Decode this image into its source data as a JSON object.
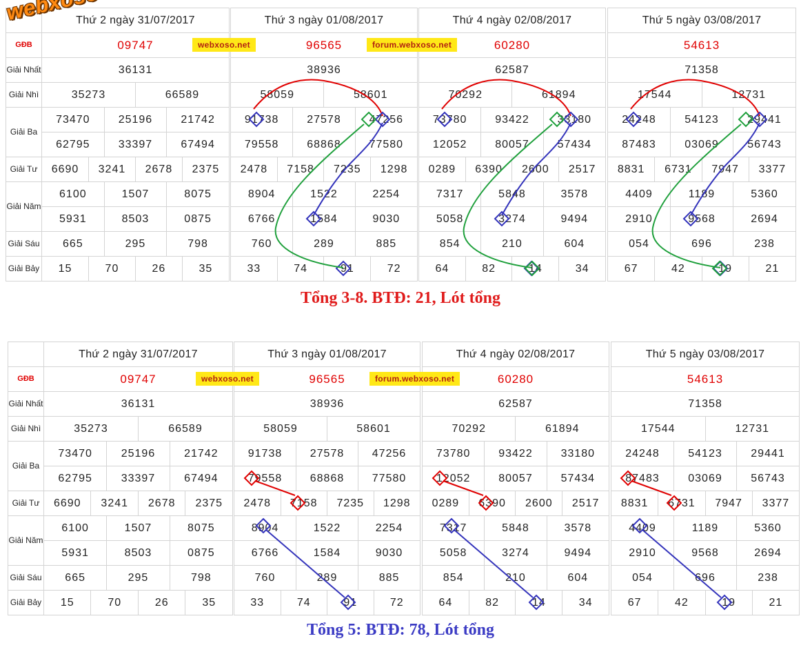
{
  "logo": "webxoso.net",
  "badges": {
    "site": "webxoso.net",
    "forum": "forum.webxoso.net"
  },
  "labels": {
    "gdb": "GĐB",
    "nhat": "Giải Nhất",
    "nhi": "Giải Nhì",
    "ba": "Giải Ba",
    "tu": "Giải Tư",
    "nam": "Giải Năm",
    "sau": "Giải Sáu",
    "bay": "Giải Bảy"
  },
  "days": [
    {
      "header": "Thứ 2 ngày 31/07/2017",
      "gdb": "09747",
      "nhat": "36131",
      "nhi": [
        "35273",
        "66589"
      ],
      "ba1": [
        "73470",
        "25196",
        "21742"
      ],
      "ba2": [
        "62795",
        "33397",
        "67494"
      ],
      "tu": [
        "6690",
        "3241",
        "2678",
        "2375"
      ],
      "nam1": [
        "6100",
        "1507",
        "8075"
      ],
      "nam2": [
        "5931",
        "8503",
        "0875"
      ],
      "sau": [
        "665",
        "295",
        "798"
      ],
      "bay": [
        "15",
        "70",
        "26",
        "35"
      ]
    },
    {
      "header": "Thứ 3 ngày 01/08/2017",
      "gdb": "96565",
      "nhat": "38936",
      "nhi": [
        "58059",
        "58601"
      ],
      "ba1": [
        "91738",
        "27578",
        "47256"
      ],
      "ba2": [
        "79558",
        "68868",
        "77580"
      ],
      "tu": [
        "2478",
        "7158",
        "7235",
        "1298"
      ],
      "nam1": [
        "8904",
        "1522",
        "2254"
      ],
      "nam2": [
        "6766",
        "1584",
        "9030"
      ],
      "sau": [
        "760",
        "289",
        "885"
      ],
      "bay": [
        "33",
        "74",
        "91",
        "72"
      ]
    },
    {
      "header": "Thứ 4 ngày 02/08/2017",
      "gdb": "60280",
      "nhat": "62587",
      "nhi": [
        "70292",
        "61894"
      ],
      "ba1": [
        "73780",
        "93422",
        "33180"
      ],
      "ba2": [
        "12052",
        "80057",
        "57434"
      ],
      "tu": [
        "0289",
        "6390",
        "2600",
        "2517"
      ],
      "nam1": [
        "7317",
        "5848",
        "3578"
      ],
      "nam2": [
        "5058",
        "3274",
        "9494"
      ],
      "sau": [
        "854",
        "210",
        "604"
      ],
      "bay": [
        "64",
        "82",
        "14",
        "34"
      ]
    },
    {
      "header": "Thứ 5 ngày 03/08/2017",
      "gdb": "54613",
      "nhat": "71358",
      "nhi": [
        "17544",
        "12731"
      ],
      "ba1": [
        "24248",
        "54123",
        "29441"
      ],
      "ba2": [
        "87483",
        "03069",
        "56743"
      ],
      "tu": [
        "8831",
        "6731",
        "7947",
        "3377"
      ],
      "nam1": [
        "4409",
        "1189",
        "5360"
      ],
      "nam2": [
        "2910",
        "9568",
        "2694"
      ],
      "sau": [
        "054",
        "696",
        "238"
      ],
      "bay": [
        "67",
        "42",
        "19",
        "21"
      ]
    }
  ],
  "captions": {
    "top": "Tổng 3-8. BTĐ: 21, Lót tổng",
    "bottom": "Tổng 5: BTĐ: 78, Lót tổng"
  },
  "colors": {
    "red": "#e00000",
    "blue": "#3333bb",
    "green": "#1fa03c",
    "caption_red": "#e01b1b",
    "caption_blue": "#3b3bc4"
  }
}
